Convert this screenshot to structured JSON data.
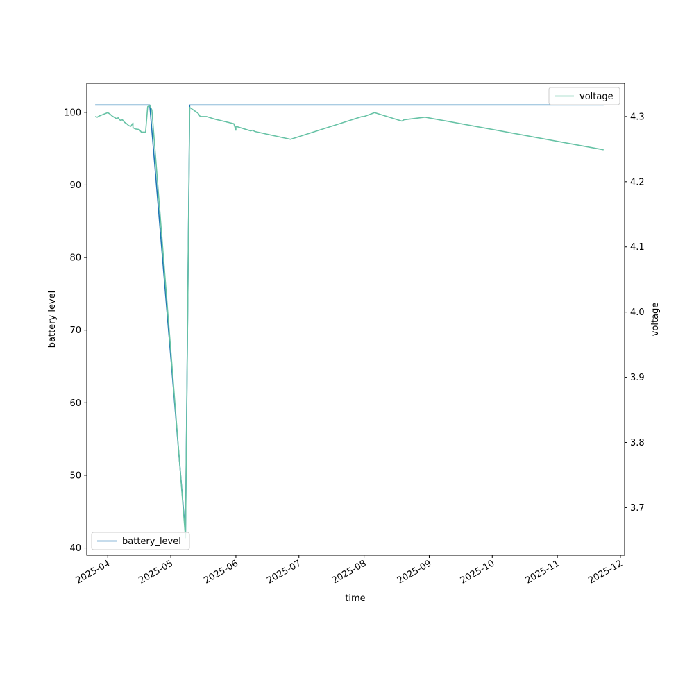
{
  "chart_data": {
    "type": "line",
    "title": "",
    "xlabel": "time",
    "ylabel_left": "battery level",
    "ylabel_right": "voltage",
    "x_ticks": [
      "2025-04",
      "2025-05",
      "2025-06",
      "2025-07",
      "2025-08",
      "2025-09",
      "2025-10",
      "2025-11",
      "2025-12"
    ],
    "x_range": [
      "2025-03-22",
      "2025-12-03"
    ],
    "y_left_ticks": [
      40,
      50,
      60,
      70,
      80,
      90,
      100
    ],
    "y_left_range": [
      39.0,
      104.0
    ],
    "y_right_ticks": [
      "3.7",
      "3.8",
      "3.9",
      "4.0",
      "4.1",
      "4.2",
      "4.3"
    ],
    "y_right_range": [
      3.627,
      4.351
    ],
    "grid": false,
    "series": [
      {
        "name": "battery_level",
        "axis": "left",
        "color": "#1f77b4",
        "legend_position": "lower-left",
        "points": [
          [
            "2025-03-26",
            101
          ],
          [
            "2025-04-20",
            101
          ],
          [
            "2025-04-21",
            101
          ],
          [
            "2025-05-08",
            42
          ],
          [
            "2025-05-10",
            101
          ],
          [
            "2025-11-23",
            101
          ]
        ]
      },
      {
        "name": "voltage",
        "axis": "right",
        "color": "#66c2a5",
        "legend_position": "upper-right",
        "points": [
          [
            "2025-03-26",
            4.3
          ],
          [
            "2025-03-27",
            4.299
          ],
          [
            "2025-03-28",
            4.301
          ],
          [
            "2025-04-01",
            4.306
          ],
          [
            "2025-04-02",
            4.304
          ],
          [
            "2025-04-03",
            4.301
          ],
          [
            "2025-04-04",
            4.299
          ],
          [
            "2025-04-05",
            4.297
          ],
          [
            "2025-04-06",
            4.298
          ],
          [
            "2025-04-07",
            4.294
          ],
          [
            "2025-04-08",
            4.295
          ],
          [
            "2025-04-09",
            4.291
          ],
          [
            "2025-04-10",
            4.289
          ],
          [
            "2025-04-11",
            4.286
          ],
          [
            "2025-04-12",
            4.285
          ],
          [
            "2025-04-13",
            4.29
          ],
          [
            "2025-04-13",
            4.283
          ],
          [
            "2025-04-14",
            4.281
          ],
          [
            "2025-04-16",
            4.28
          ],
          [
            "2025-04-17",
            4.276
          ],
          [
            "2025-04-19",
            4.276
          ],
          [
            "2025-04-20",
            4.315
          ],
          [
            "2025-04-21",
            4.317
          ],
          [
            "2025-04-22",
            4.31
          ],
          [
            "2025-05-08",
            3.654
          ],
          [
            "2025-05-10",
            4.314
          ],
          [
            "2025-05-14",
            4.305
          ],
          [
            "2025-05-15",
            4.3
          ],
          [
            "2025-05-18",
            4.3
          ],
          [
            "2025-05-21",
            4.297
          ],
          [
            "2025-05-22",
            4.296
          ],
          [
            "2025-05-31",
            4.289
          ],
          [
            "2025-06-01",
            4.279
          ],
          [
            "2025-06-01",
            4.285
          ],
          [
            "2025-06-08",
            4.278
          ],
          [
            "2025-06-09",
            4.279
          ],
          [
            "2025-06-10",
            4.277
          ],
          [
            "2025-06-27",
            4.265
          ],
          [
            "2025-07-31",
            4.3
          ],
          [
            "2025-08-01",
            4.3
          ],
          [
            "2025-08-06",
            4.306
          ],
          [
            "2025-08-19",
            4.293
          ],
          [
            "2025-08-20",
            4.295
          ],
          [
            "2025-08-30",
            4.299
          ],
          [
            "2025-11-23",
            4.249
          ]
        ]
      }
    ]
  }
}
